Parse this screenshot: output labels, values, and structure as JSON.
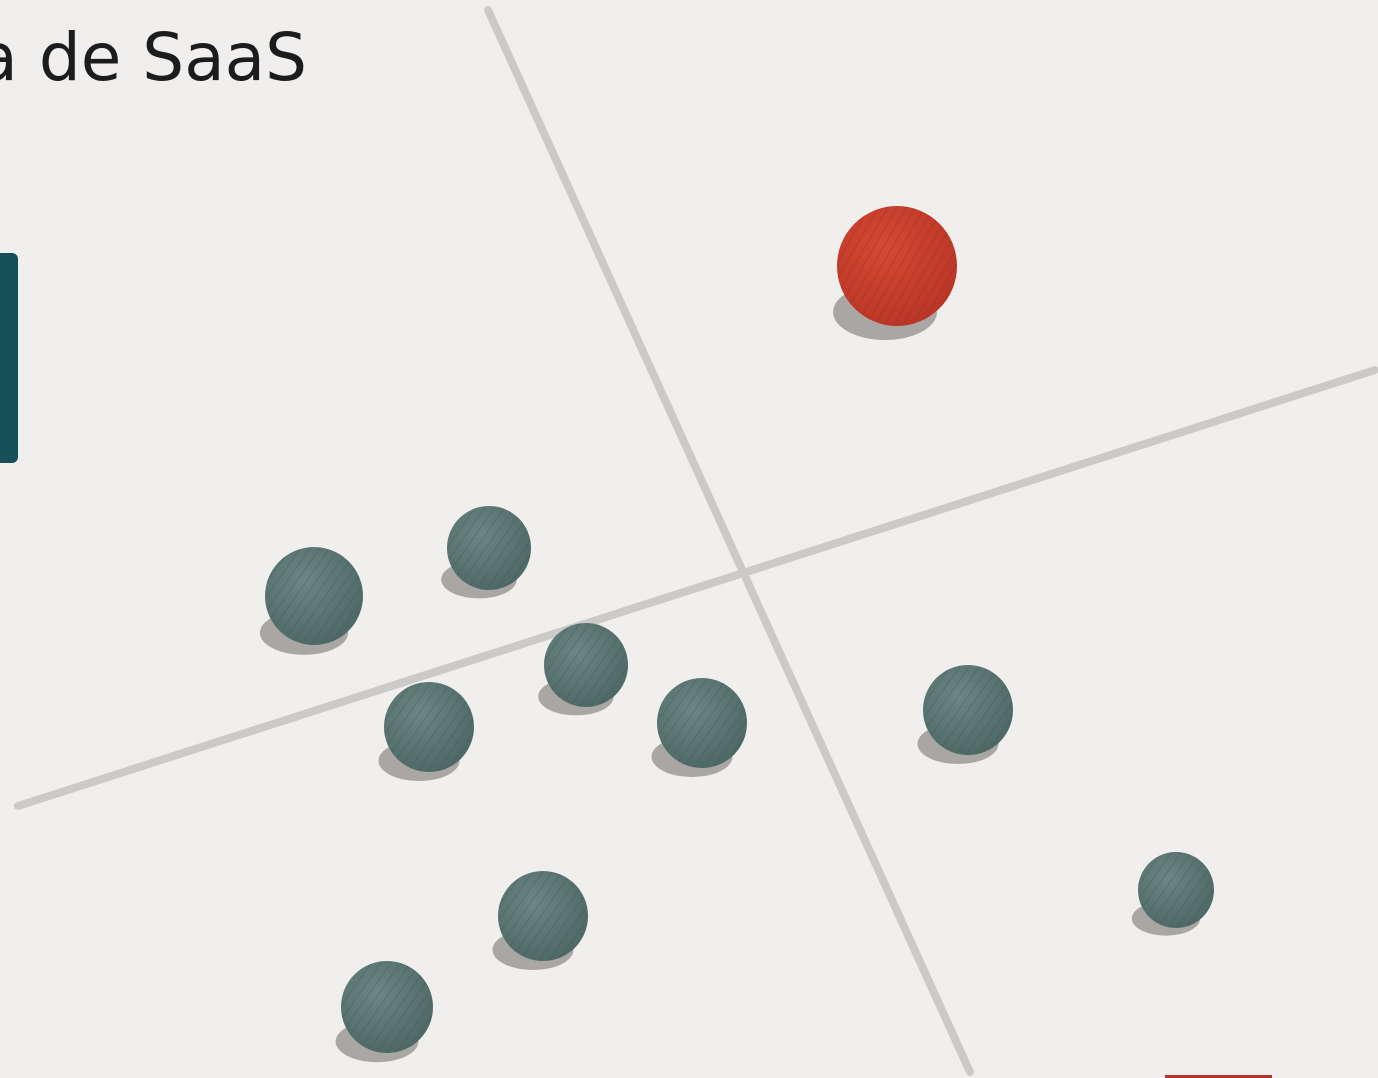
{
  "header": {
    "title": "a de SaaS"
  }
}
